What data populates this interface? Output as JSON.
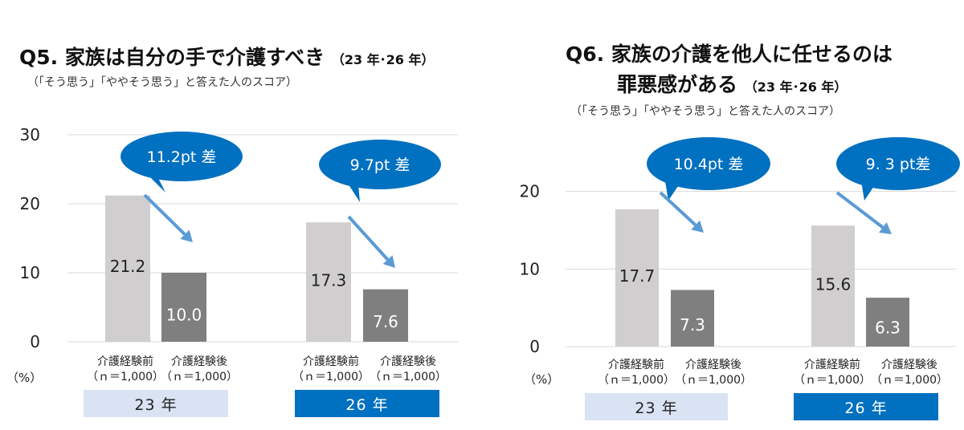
{
  "chart_data": [
    {
      "type": "bar",
      "title": "Q5.  家族は自分の手で介護すべき",
      "subtitle": "（23 年･26 年）",
      "note": "（「そう思う」「ややそう思う」と答えた人のスコア）",
      "unit_label": "（%）",
      "ylim": [
        0,
        30
      ],
      "yticks": [
        "0",
        "10",
        "20",
        "30"
      ],
      "yticks_values": [
        0,
        10,
        20,
        30
      ],
      "grid": true,
      "groups": [
        {
          "year_label": "23 年",
          "bars": [
            {
              "label": "介護経験前",
              "n": "（ｎ＝1,000）",
              "value": 21.2,
              "value_label": "21.2"
            },
            {
              "label": "介護経験後",
              "n": "（ｎ＝1,000）",
              "value": 10.0,
              "value_label": "10.0"
            }
          ],
          "diff_label": "11.2pt 差"
        },
        {
          "year_label": "26 年",
          "bars": [
            {
              "label": "介護経験前",
              "n": "（ｎ＝1,000）",
              "value": 17.3,
              "value_label": "17.3"
            },
            {
              "label": "介護経験後",
              "n": "（ｎ＝1,000）",
              "value": 7.6,
              "value_label": "7.6"
            }
          ],
          "diff_label": "9.7pt 差"
        }
      ]
    },
    {
      "type": "bar",
      "title_line1": "Q6.  家族の介護を他人に任せるのは",
      "title_line2": "罪悪感がある",
      "subtitle": "（23 年･26 年）",
      "note": "（「そう思う」「ややそう思う」と答えた人のスコア）",
      "unit_label": "（%）",
      "ylim": [
        0,
        24
      ],
      "yticks": [
        "0",
        "10",
        "20"
      ],
      "yticks_values": [
        0,
        10,
        20
      ],
      "grid": true,
      "groups": [
        {
          "year_label": "23 年",
          "bars": [
            {
              "label": "介護経験前",
              "n": "（ｎ＝1,000）",
              "value": 17.7,
              "value_label": "17.7"
            },
            {
              "label": "介護経験後",
              "n": "（ｎ＝1,000）",
              "value": 7.3,
              "value_label": "7.3"
            }
          ],
          "diff_label": "10.4pt 差"
        },
        {
          "year_label": "26 年",
          "bars": [
            {
              "label": "介護経験前",
              "n": "（ｎ＝1,000）",
              "value": 15.6,
              "value_label": "15.6"
            },
            {
              "label": "介護経験後",
              "n": "（ｎ＝1,000）",
              "value": 6.3,
              "value_label": "6.3"
            }
          ],
          "diff_label": "9. 3 pt差"
        }
      ]
    }
  ],
  "colors": {
    "bar_before": "#d0cece",
    "bar_after": "#7f7f7f",
    "bubble": "#0070c0",
    "arrow": "#5b9bd5",
    "gridline": "#d9d9d9",
    "year_light": "#dae3f3",
    "year_dark": "#0070c0"
  }
}
